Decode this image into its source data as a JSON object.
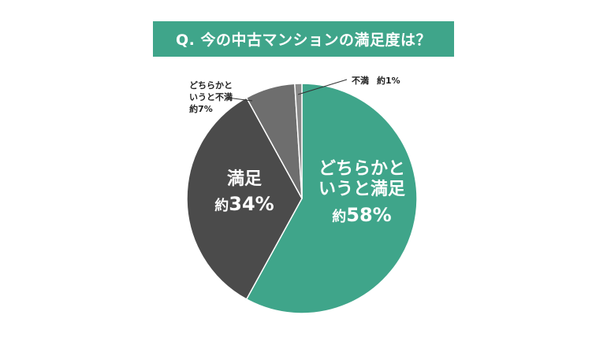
{
  "title": "Q. 今の中古マンションの満足度は？",
  "colors": {
    "title_bg": "#3fa58a",
    "slice_satisfied_somewhat": "#3fa58a",
    "slice_satisfied": "#4b4b4b",
    "slice_dissatisfied_somewhat": "#6e6e6e",
    "slice_dissatisfied": "#8a8a8a"
  },
  "chart_data": {
    "type": "pie",
    "title": "Q. 今の中古マンションの満足度は？",
    "start": "12 o'clock, clockwise",
    "slices": [
      {
        "key": "somewhat_satisfied",
        "label": "どちらかというと満足",
        "value": 58,
        "value_label": "約58%",
        "color": "#3fa58a"
      },
      {
        "key": "satisfied",
        "label": "満足",
        "value": 34,
        "value_label": "約34%",
        "color": "#4b4b4b"
      },
      {
        "key": "somewhat_dissatisfied",
        "label": "どちらかというと不満",
        "value": 7,
        "value_label": "約7%",
        "color": "#6e6e6e"
      },
      {
        "key": "dissatisfied",
        "label": "不満",
        "value": 1,
        "value_label": "約1%",
        "color": "#8a8a8a"
      }
    ]
  },
  "labels": {
    "somewhat_satisfied": {
      "line1": "どちらかと",
      "line2": "いうと満足",
      "pct_prefix": "約",
      "pct_value": "58%"
    },
    "satisfied": {
      "line1": "満足",
      "pct_prefix": "約",
      "pct_value": "34%"
    },
    "somewhat_dissatisfied": {
      "line1": "どちらかと",
      "line2": "いうと不満",
      "pct": "約7%"
    },
    "dissatisfied": {
      "name": "不満",
      "pct": "約1%"
    }
  }
}
